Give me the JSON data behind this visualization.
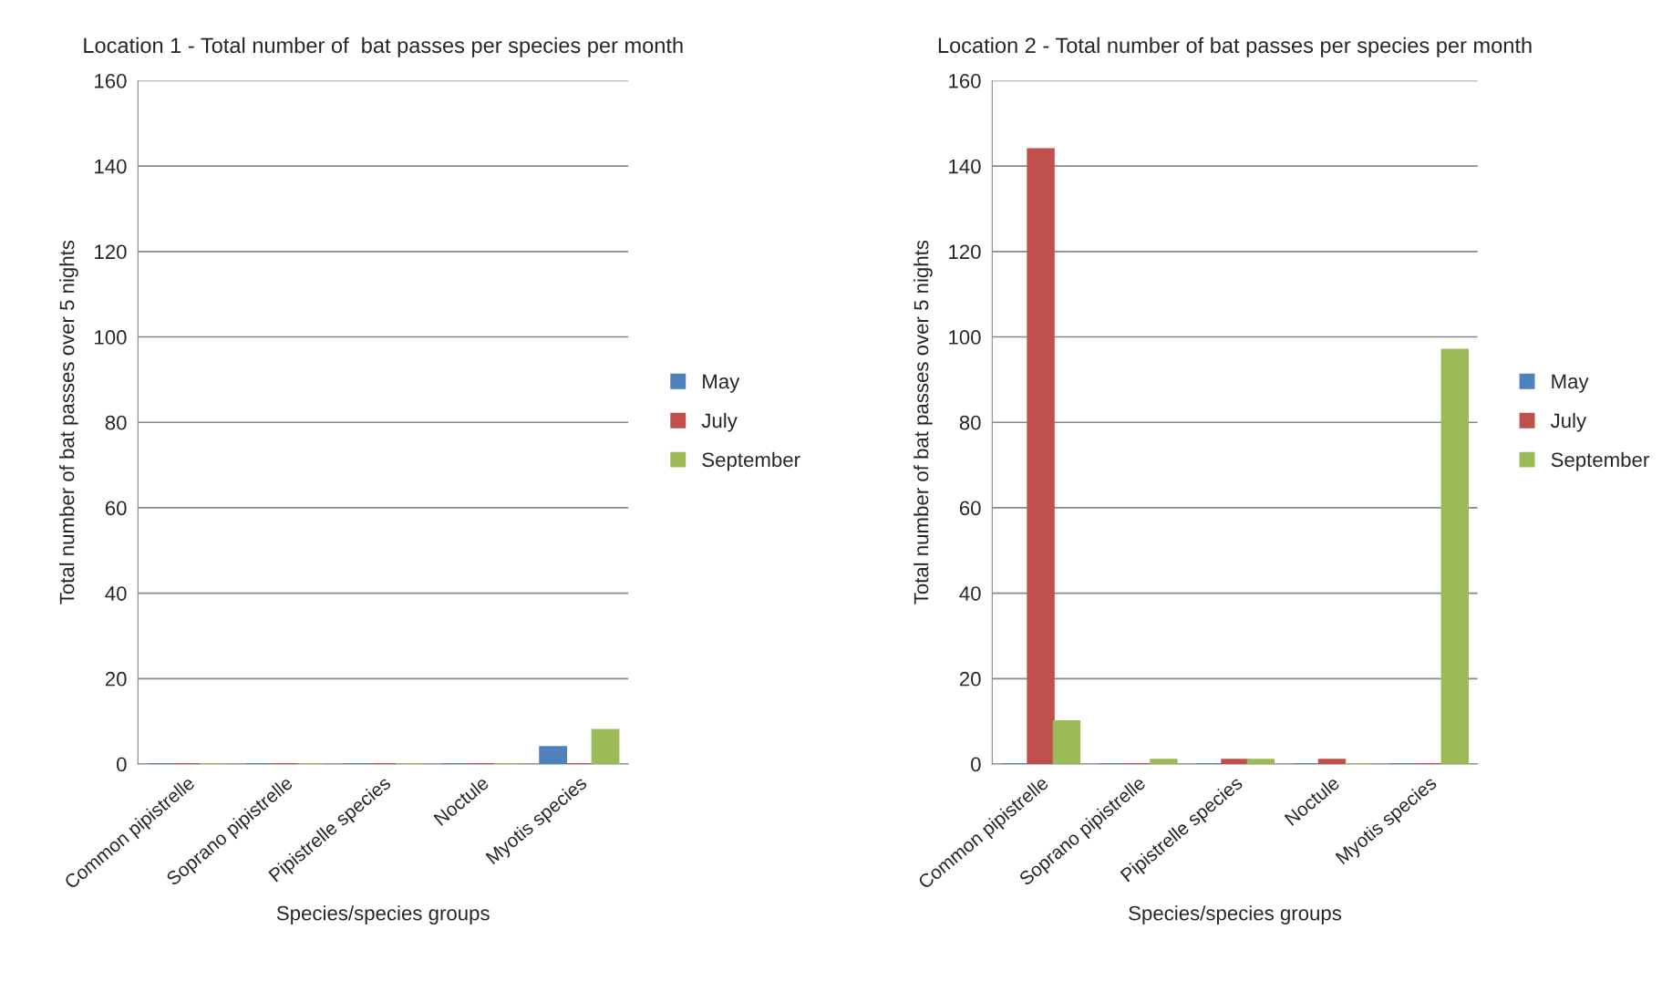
{
  "chart_data": [
    {
      "type": "bar",
      "title": "Location 1 - Total number of  bat passes per species per month",
      "xlabel": "Species/species groups",
      "ylabel": "Total number of bat passes over 5 nights",
      "categories": [
        "Common pipistrelle",
        "Soprano pipistrelle",
        "Pipistrelle species",
        "Noctule",
        "Myotis species"
      ],
      "series": [
        {
          "name": "May",
          "color": "#4f81bd",
          "values": [
            0,
            0,
            0,
            0,
            4
          ]
        },
        {
          "name": "July",
          "color": "#c0504d",
          "values": [
            0,
            0,
            0,
            0,
            0
          ]
        },
        {
          "name": "September",
          "color": "#9bbb59",
          "values": [
            0,
            0,
            0,
            0,
            8
          ]
        }
      ],
      "ylim": [
        0,
        160
      ],
      "yticks": [
        0,
        20,
        40,
        60,
        80,
        100,
        120,
        140,
        160
      ],
      "grid": "y",
      "legend": "right"
    },
    {
      "type": "bar",
      "title": "Location 2 - Total number of bat passes per species per month",
      "xlabel": "Species/species groups",
      "ylabel": "Total number of bat passes over 5 nights",
      "categories": [
        "Common pipistrelle",
        "Soprano pipistrelle",
        "Pipistrelle species",
        "Noctule",
        "Myotis species"
      ],
      "series": [
        {
          "name": "May",
          "color": "#4f81bd",
          "values": [
            0,
            0,
            0,
            0,
            0
          ]
        },
        {
          "name": "July",
          "color": "#c0504d",
          "values": [
            144,
            0,
            1,
            1,
            0
          ]
        },
        {
          "name": "September",
          "color": "#9bbb59",
          "values": [
            10,
            1,
            1,
            0,
            97
          ]
        }
      ],
      "ylim": [
        0,
        160
      ],
      "yticks": [
        0,
        20,
        40,
        60,
        80,
        100,
        120,
        140,
        160
      ],
      "grid": "y",
      "legend": "right"
    }
  ]
}
